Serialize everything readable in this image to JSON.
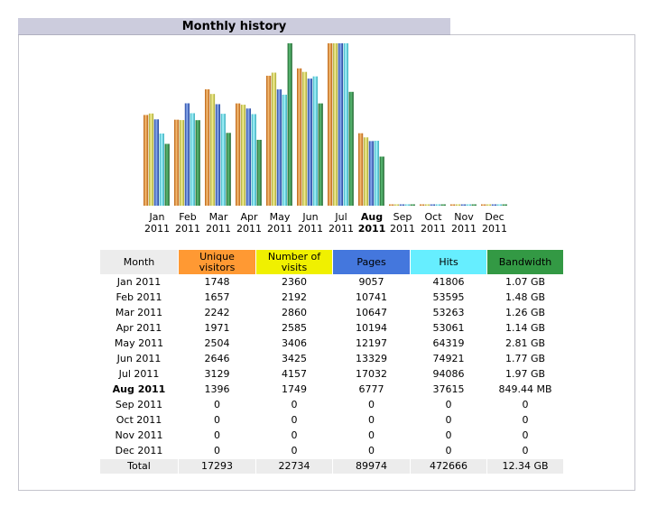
{
  "section": {
    "title": "Monthly history"
  },
  "colors": {
    "unique_visitors": "#ff9933",
    "visits": "#f0f000",
    "pages": "#4477dd",
    "hits": "#66eeff",
    "bandwidth": "#339944"
  },
  "table": {
    "headers": {
      "month": "Month",
      "unique_visitors": "Unique visitors",
      "visits": "Number of visits",
      "pages": "Pages",
      "hits": "Hits",
      "bandwidth": "Bandwidth"
    },
    "rows": [
      {
        "month": "Jan 2011",
        "unique": "1748",
        "visits": "2360",
        "pages": "9057",
        "hits": "41806",
        "bandwidth": "1.07 GB"
      },
      {
        "month": "Feb 2011",
        "unique": "1657",
        "visits": "2192",
        "pages": "10741",
        "hits": "53595",
        "bandwidth": "1.48 GB"
      },
      {
        "month": "Mar 2011",
        "unique": "2242",
        "visits": "2860",
        "pages": "10647",
        "hits": "53263",
        "bandwidth": "1.26 GB"
      },
      {
        "month": "Apr 2011",
        "unique": "1971",
        "visits": "2585",
        "pages": "10194",
        "hits": "53061",
        "bandwidth": "1.14 GB"
      },
      {
        "month": "May 2011",
        "unique": "2504",
        "visits": "3406",
        "pages": "12197",
        "hits": "64319",
        "bandwidth": "2.81 GB"
      },
      {
        "month": "Jun 2011",
        "unique": "2646",
        "visits": "3425",
        "pages": "13329",
        "hits": "74921",
        "bandwidth": "1.77 GB"
      },
      {
        "month": "Jul 2011",
        "unique": "3129",
        "visits": "4157",
        "pages": "17032",
        "hits": "94086",
        "bandwidth": "1.97 GB"
      },
      {
        "month": "Aug 2011",
        "unique": "1396",
        "visits": "1749",
        "pages": "6777",
        "hits": "37615",
        "bandwidth": "849.44 MB"
      },
      {
        "month": "Sep 2011",
        "unique": "0",
        "visits": "0",
        "pages": "0",
        "hits": "0",
        "bandwidth": "0"
      },
      {
        "month": "Oct 2011",
        "unique": "0",
        "visits": "0",
        "pages": "0",
        "hits": "0",
        "bandwidth": "0"
      },
      {
        "month": "Nov 2011",
        "unique": "0",
        "visits": "0",
        "pages": "0",
        "hits": "0",
        "bandwidth": "0"
      },
      {
        "month": "Dec 2011",
        "unique": "0",
        "visits": "0",
        "pages": "0",
        "hits": "0",
        "bandwidth": "0"
      }
    ],
    "total": {
      "label": "Total",
      "unique": "17293",
      "visits": "22734",
      "pages": "89974",
      "hits": "472666",
      "bandwidth": "12.34 GB"
    }
  },
  "chart_data": {
    "type": "bar",
    "categories": [
      "Jan 2011",
      "Feb 2011",
      "Mar 2011",
      "Apr 2011",
      "May 2011",
      "Jun 2011",
      "Jul 2011",
      "Aug 2011",
      "Sep 2011",
      "Oct 2011",
      "Nov 2011",
      "Dec 2011"
    ],
    "category_lines": [
      [
        "Jan",
        "2011"
      ],
      [
        "Feb",
        "2011"
      ],
      [
        "Mar",
        "2011"
      ],
      [
        "Apr",
        "2011"
      ],
      [
        "May",
        "2011"
      ],
      [
        "Jun",
        "2011"
      ],
      [
        "Jul",
        "2011"
      ],
      [
        "Aug",
        "2011"
      ],
      [
        "Sep",
        "2011"
      ],
      [
        "Oct",
        "2011"
      ],
      [
        "Nov",
        "2011"
      ],
      [
        "Dec",
        "2011"
      ]
    ],
    "current_index": 7,
    "series": [
      {
        "name": "Unique visitors",
        "color": "#ff9933",
        "values": [
          1748,
          1657,
          2242,
          1971,
          2504,
          2646,
          3129,
          1396,
          0,
          0,
          0,
          0
        ]
      },
      {
        "name": "Number of visits",
        "color": "#f0f000",
        "values": [
          2360,
          2192,
          2860,
          2585,
          3406,
          3425,
          4157,
          1749,
          0,
          0,
          0,
          0
        ]
      },
      {
        "name": "Pages",
        "color": "#4477dd",
        "values": [
          9057,
          10741,
          10647,
          10194,
          12197,
          13329,
          17032,
          6777,
          0,
          0,
          0,
          0
        ]
      },
      {
        "name": "Hits",
        "color": "#66eeff",
        "values": [
          41806,
          53595,
          53263,
          53061,
          64319,
          74921,
          94086,
          37615,
          0,
          0,
          0,
          0
        ]
      },
      {
        "name": "Bandwidth (GB)",
        "color": "#339944",
        "values": [
          1.07,
          1.48,
          1.26,
          1.14,
          2.81,
          1.77,
          1.97,
          0.85,
          0,
          0,
          0,
          0
        ]
      }
    ]
  }
}
